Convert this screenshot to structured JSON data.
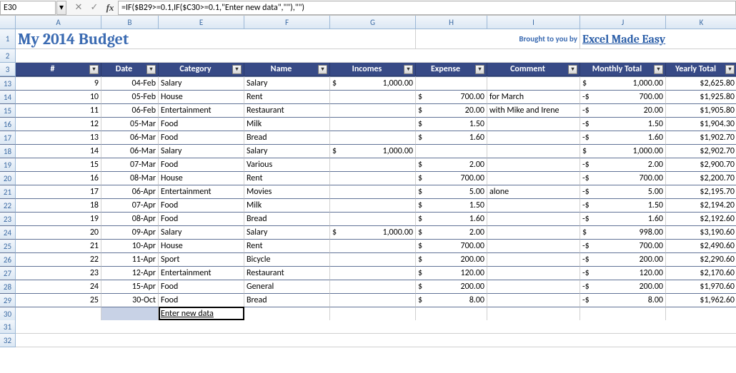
{
  "namebox": "E30",
  "formula": "=IF($B29>=0.1,IF($C30>=0.1,\"Enter new data\",\"\"),\"\")",
  "title": "My 2014 Budget",
  "brought_label": "Brought to you by",
  "brand": "Excel Made Easy",
  "columns": [
    "A",
    "B",
    "E",
    "F",
    "G",
    "H",
    "I",
    "J",
    "K"
  ],
  "filter_icon": "▾",
  "headers": {
    "num": "#",
    "date": "Date",
    "category": "Category",
    "name": "Name",
    "incomes": "Incomes",
    "expense": "Expense",
    "comment": "Comment",
    "monthly": "Monthly Total",
    "yearly": "Yearly Total"
  },
  "row_labels_top": [
    "1",
    "2",
    "3"
  ],
  "row_labels_data": [
    "13",
    "14",
    "15",
    "16",
    "17",
    "18",
    "19",
    "20",
    "21",
    "22",
    "23",
    "24",
    "25",
    "26",
    "27",
    "28",
    "29"
  ],
  "row_labels_bottom": [
    "30",
    "31",
    "32"
  ],
  "enter_new_data": "Enter new data",
  "rows": [
    {
      "n": "9",
      "date": "04-Feb",
      "cat": "Salary",
      "name": "Salary",
      "inc": "1,000.00",
      "exp": "",
      "comment": "",
      "mt": "1,000.00",
      "mts": "$",
      "yt": "$2,625.80"
    },
    {
      "n": "10",
      "date": "05-Feb",
      "cat": "House",
      "name": "Rent",
      "inc": "",
      "exp": "700.00",
      "comment": "for March",
      "mt": "700.00",
      "mts": "-$",
      "yt": "$1,925.80"
    },
    {
      "n": "11",
      "date": "06-Feb",
      "cat": "Entertainment",
      "name": "Restaurant",
      "inc": "",
      "exp": "20.00",
      "comment": "with Mike and Irene",
      "mt": "20.00",
      "mts": "-$",
      "yt": "$1,905.80"
    },
    {
      "n": "12",
      "date": "05-Mar",
      "cat": "Food",
      "name": "Milk",
      "inc": "",
      "exp": "1.50",
      "comment": "",
      "mt": "1.50",
      "mts": "-$",
      "yt": "$1,904.30"
    },
    {
      "n": "13",
      "date": "06-Mar",
      "cat": "Food",
      "name": "Bread",
      "inc": "",
      "exp": "1.60",
      "comment": "",
      "mt": "1.60",
      "mts": "-$",
      "yt": "$1,902.70"
    },
    {
      "n": "14",
      "date": "06-Mar",
      "cat": "Salary",
      "name": "Salary",
      "inc": "1,000.00",
      "exp": "",
      "comment": "",
      "mt": "1,000.00",
      "mts": "$",
      "yt": "$2,902.70"
    },
    {
      "n": "15",
      "date": "07-Mar",
      "cat": "Food",
      "name": "Various",
      "inc": "",
      "exp": "2.00",
      "comment": "",
      "mt": "2.00",
      "mts": "-$",
      "yt": "$2,900.70"
    },
    {
      "n": "16",
      "date": "08-Mar",
      "cat": "House",
      "name": "Rent",
      "inc": "",
      "exp": "700.00",
      "comment": "",
      "mt": "700.00",
      "mts": "-$",
      "yt": "$2,200.70"
    },
    {
      "n": "17",
      "date": "06-Apr",
      "cat": "Entertainment",
      "name": "Movies",
      "inc": "",
      "exp": "5.00",
      "comment": "alone",
      "mt": "5.00",
      "mts": "-$",
      "yt": "$2,195.70"
    },
    {
      "n": "18",
      "date": "07-Apr",
      "cat": "Food",
      "name": "Milk",
      "inc": "",
      "exp": "1.50",
      "comment": "",
      "mt": "1.50",
      "mts": "-$",
      "yt": "$2,194.20"
    },
    {
      "n": "19",
      "date": "08-Apr",
      "cat": "Food",
      "name": "Bread",
      "inc": "",
      "exp": "1.60",
      "comment": "",
      "mt": "1.60",
      "mts": "-$",
      "yt": "$2,192.60"
    },
    {
      "n": "20",
      "date": "09-Apr",
      "cat": "Salary",
      "name": "Salary",
      "inc": "1,000.00",
      "exp": "2.00",
      "comment": "",
      "mt": "998.00",
      "mts": "$",
      "yt": "$3,190.60"
    },
    {
      "n": "21",
      "date": "10-Apr",
      "cat": "House",
      "name": "Rent",
      "inc": "",
      "exp": "700.00",
      "comment": "",
      "mt": "700.00",
      "mts": "-$",
      "yt": "$2,490.60"
    },
    {
      "n": "22",
      "date": "11-Apr",
      "cat": "Sport",
      "name": "Bicycle",
      "inc": "",
      "exp": "200.00",
      "comment": "",
      "mt": "200.00",
      "mts": "-$",
      "yt": "$2,290.60"
    },
    {
      "n": "23",
      "date": "12-Apr",
      "cat": "Entertainment",
      "name": "Restaurant",
      "inc": "",
      "exp": "120.00",
      "comment": "",
      "mt": "120.00",
      "mts": "-$",
      "yt": "$2,170.60"
    },
    {
      "n": "24",
      "date": "15-Apr",
      "cat": "Food",
      "name": "General",
      "inc": "",
      "exp": "200.00",
      "comment": "",
      "mt": "200.00",
      "mts": "-$",
      "yt": "$1,970.60"
    },
    {
      "n": "25",
      "date": "30-Oct",
      "cat": "Food",
      "name": "Bread",
      "inc": "",
      "exp": "8.00",
      "comment": "",
      "mt": "8.00",
      "mts": "-$",
      "yt": "$1,962.60"
    }
  ]
}
